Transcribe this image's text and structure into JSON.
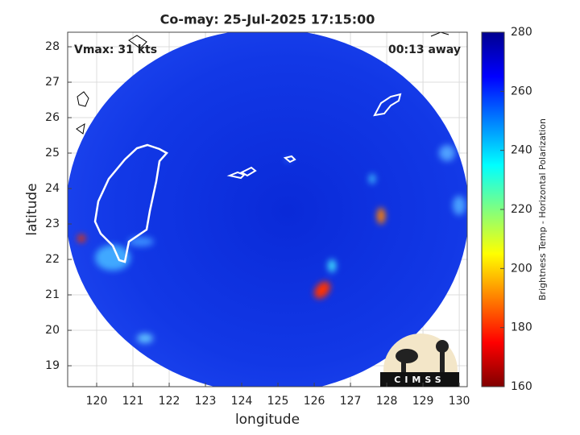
{
  "chart_data": {
    "type": "map",
    "title": "Co-may: 25-Jul-2025 17:15:00",
    "annotations": [
      "Vmax: 31 kts",
      "00:13 away"
    ],
    "x_label": "longitude",
    "y_label": "latitude",
    "xlim": [
      119.2,
      130.22
    ],
    "ylim": [
      18.41,
      28.41
    ],
    "xticks": [
      120,
      121,
      122,
      123,
      124,
      125,
      126,
      127,
      128,
      129,
      130
    ],
    "yticks": [
      19,
      20,
      21,
      22,
      23,
      24,
      25,
      26,
      27,
      28
    ],
    "grid": true,
    "colorbar": {
      "label": "Brightness Temp - Horizontal Polarization",
      "colormap": "jet_r",
      "clim": [
        160,
        280
      ],
      "ticks": [
        160,
        180,
        200,
        220,
        240,
        260,
        280
      ]
    },
    "logo": "CIMSS"
  }
}
